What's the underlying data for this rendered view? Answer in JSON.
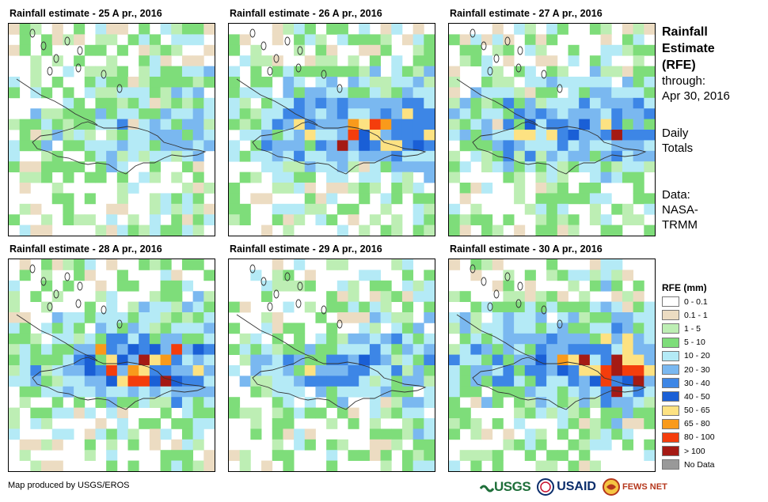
{
  "panels": [
    {
      "title": "Rainfall estimate - 25 A pr., 2016",
      "hotspots": [
        [
          3,
          0.8
        ],
        [
          6,
          0.7
        ],
        [
          10,
          0.8
        ]
      ],
      "intensity": 0.35
    },
    {
      "title": "Rainfall estimate - 26 A pr., 2016",
      "hotspots": [
        [
          4,
          1.6
        ],
        [
          10,
          2.4
        ],
        [
          7,
          1.2
        ]
      ],
      "intensity": 1.0
    },
    {
      "title": "Rainfall estimate - 27 A pr., 2016",
      "hotspots": [
        [
          4,
          1.8
        ],
        [
          10,
          1.4
        ],
        [
          7,
          1.0
        ]
      ],
      "intensity": 0.85
    },
    {
      "title": "Rainfall estimate - 28 A pr., 2016",
      "hotspots": [
        [
          6,
          1.7
        ],
        [
          10,
          1.5
        ],
        [
          8,
          1.3
        ]
      ],
      "intensity": 0.9
    },
    {
      "title": "Rainfall estimate - 29 A pr., 2016",
      "hotspots": [
        [
          6,
          1.1
        ],
        [
          9,
          1.0
        ],
        [
          4,
          0.8
        ]
      ],
      "intensity": 0.6
    },
    {
      "title": "Rainfall estimate - 30 A pr., 2016",
      "hotspots": [
        [
          10,
          2.3
        ],
        [
          12,
          2.0
        ],
        [
          7,
          1.5
        ]
      ],
      "intensity": 1.1
    }
  ],
  "side": {
    "title_lines": [
      "Rainfall",
      "Estimate",
      "(RFE)"
    ],
    "through_label": "through:",
    "through_date": "Apr 30, 2016",
    "totals_lines": [
      "Daily",
      "Totals"
    ],
    "data_lines": [
      "Data:",
      "NASA-",
      "TRMM"
    ]
  },
  "legend": {
    "title": "RFE (mm)",
    "items": [
      {
        "label": "0 - 0.1",
        "color": "#ffffff"
      },
      {
        "label": "0.1 - 1",
        "color": "#ecdcc2"
      },
      {
        "label": "1 - 5",
        "color": "#bdeeb4"
      },
      {
        "label": "5 - 10",
        "color": "#7edd7a"
      },
      {
        "label": "10 - 20",
        "color": "#b4eaf6"
      },
      {
        "label": "20 - 30",
        "color": "#7ab8f0"
      },
      {
        "label": "30 - 40",
        "color": "#3d86e6"
      },
      {
        "label": "40 - 50",
        "color": "#1a5fd6"
      },
      {
        "label": "50 - 65",
        "color": "#fde282"
      },
      {
        "label": "65 - 80",
        "color": "#f99a1b"
      },
      {
        "label": "80 - 100",
        "color": "#f43d0c"
      },
      {
        "label": "> 100",
        "color": "#a51a14"
      },
      {
        "label": "No Data",
        "color": "#999999"
      }
    ]
  },
  "footer": {
    "credit": "Map produced by USGS/EROS"
  },
  "logos": {
    "usgs": "USGS",
    "usaid": "USAID",
    "fews": "FEWS NET"
  }
}
